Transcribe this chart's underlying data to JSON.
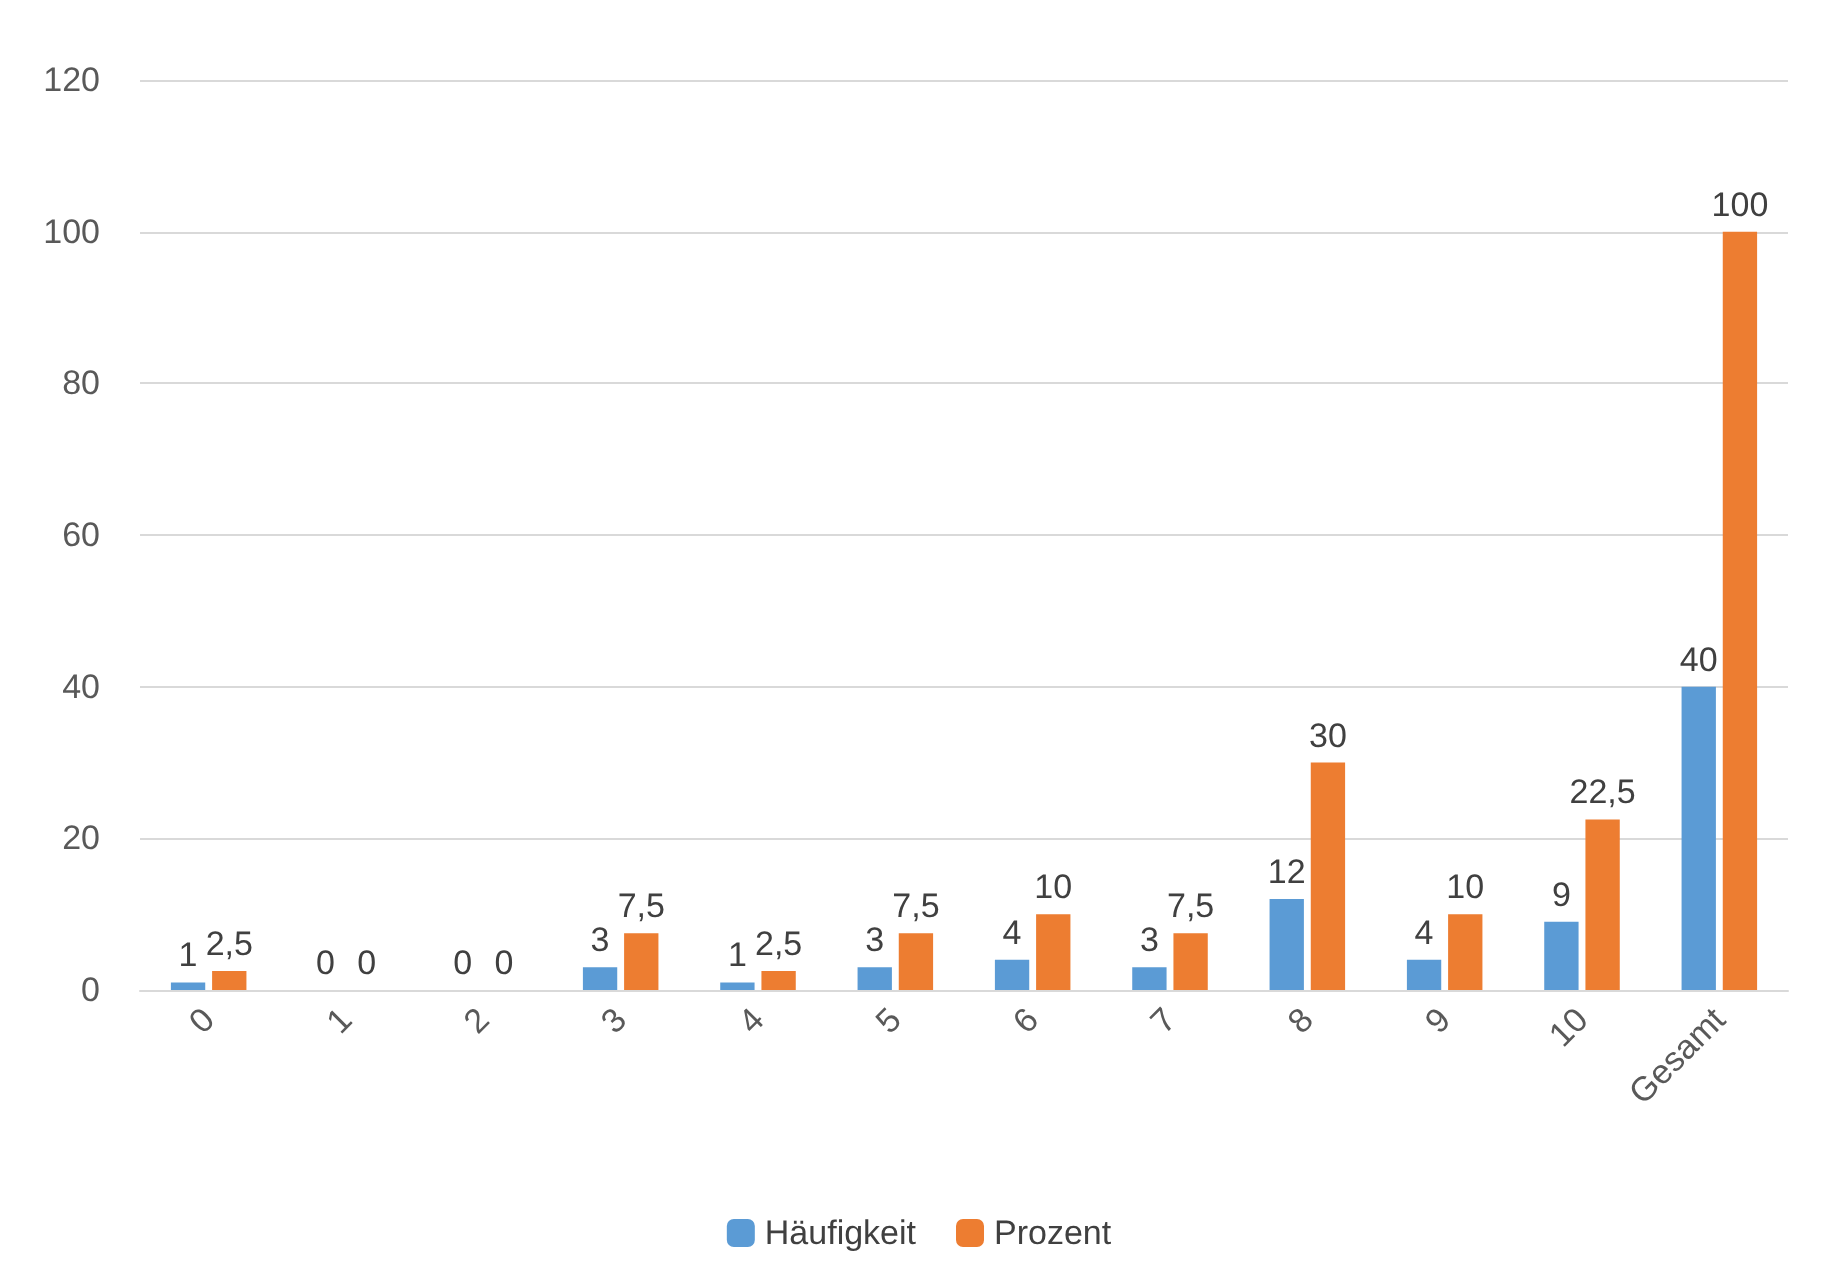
{
  "chart_data": {
    "type": "bar",
    "categories": [
      "0",
      "1",
      "2",
      "3",
      "4",
      "5",
      "6",
      "7",
      "8",
      "9",
      "10",
      "Gesamt"
    ],
    "series": [
      {
        "name": "Häufigkeit",
        "color": "#5b9bd5",
        "values": [
          1,
          0,
          0,
          3,
          1,
          3,
          4,
          3,
          12,
          4,
          9,
          40
        ],
        "value_labels": [
          "1",
          "0",
          "0",
          "3",
          "1",
          "3",
          "4",
          "3",
          "12",
          "4",
          "9",
          "40"
        ]
      },
      {
        "name": "Prozent",
        "color": "#ed7d31",
        "values": [
          2.5,
          0,
          0,
          7.5,
          2.5,
          7.5,
          10,
          7.5,
          30,
          10,
          22.5,
          100
        ],
        "value_labels": [
          "2,5",
          "0",
          "0",
          "7,5",
          "2,5",
          "7,5",
          "10",
          "7,5",
          "30",
          "10",
          "22,5",
          "100"
        ]
      }
    ],
    "ylim": [
      0,
      120
    ],
    "yticks": [
      0,
      20,
      40,
      60,
      80,
      100,
      120
    ],
    "grid": "y",
    "legend": "bottom"
  }
}
